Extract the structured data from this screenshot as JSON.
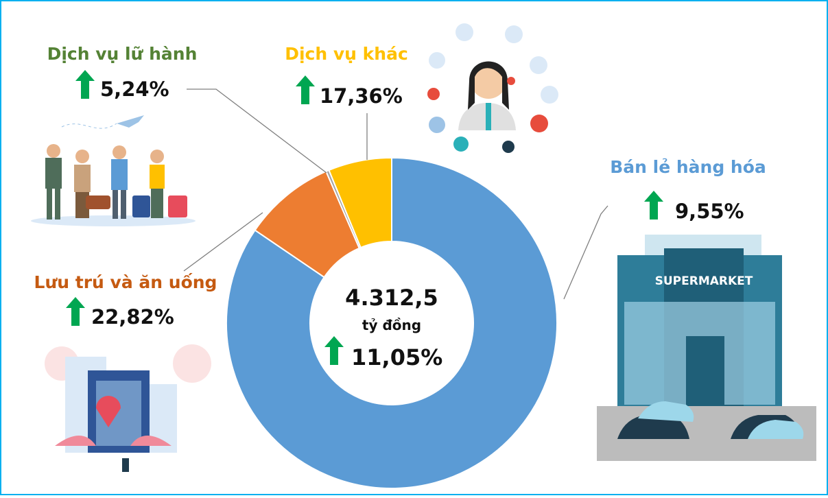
{
  "chart_data": {
    "type": "donut",
    "categories": [
      "Bán lẻ hàng hóa",
      "Lưu trú và ăn uống",
      "Dịch vụ lữ hành",
      "Dịch vụ khác"
    ],
    "values": [
      84.5,
      9,
      0.3,
      6.2
    ],
    "colors": [
      "#5b9bd5",
      "#ed7d31",
      "#a5a5a5",
      "#ffc000"
    ],
    "growth_labels": [
      "9,55%",
      "22,82%",
      "5,24%",
      "17,36%"
    ],
    "center": {
      "total": "4.312,5",
      "unit": "tỷ đồng",
      "growth": "11,05%"
    }
  }
}
